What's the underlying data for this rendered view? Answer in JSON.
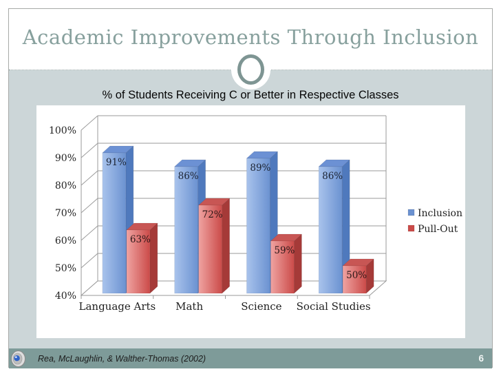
{
  "slide": {
    "title": "Academic Improvements Through Inclusion",
    "footer_citation": "Rea, McLaughlin, & Walther-Thomas (2002)",
    "page_number": "6"
  },
  "chart_data": {
    "type": "bar",
    "style": "3d-clustered-column",
    "title": "% of Students Receiving C or Better in Respective Classes",
    "categories": [
      "Language Arts",
      "Math",
      "Science",
      "Social Studies"
    ],
    "series": [
      {
        "name": "Inclusion",
        "color": "#6e95d2",
        "values": [
          91,
          86,
          89,
          86
        ],
        "labels": [
          "91%",
          "86%",
          "89%",
          "86%"
        ]
      },
      {
        "name": "Pull-Out",
        "color": "#cf504e",
        "values": [
          63,
          72,
          59,
          50
        ],
        "labels": [
          "63%",
          "72%",
          "59%",
          "50%"
        ]
      }
    ],
    "value_axis": {
      "min": 40,
      "max": 100,
      "step": 10,
      "tick_labels": [
        "40%",
        "50%",
        "60%",
        "70%",
        "80%",
        "90%",
        "100%"
      ]
    },
    "legend_position": "right",
    "legend_entries": [
      "Inclusion",
      "Pull-Out"
    ],
    "grid": true
  },
  "icons": {
    "speaker": "speaker-icon"
  },
  "colors": {
    "title_text": "#87a09d",
    "content_background": "#ccd6d8",
    "footer_bar": "#7e9b99",
    "ornament_ring": "#7e9593",
    "inclusion_front_light": "#a9c3ec",
    "inclusion_front_dark": "#6b92d1",
    "inclusion_top": "#6c91d4",
    "inclusion_side": "#4f79bd",
    "pullout_front_light": "#efa3a1",
    "pullout_front_dark": "#cb4b49",
    "pullout_top": "#c85654",
    "pullout_side": "#a53a38",
    "gridline": "#999999",
    "axis_text": "#222222"
  }
}
